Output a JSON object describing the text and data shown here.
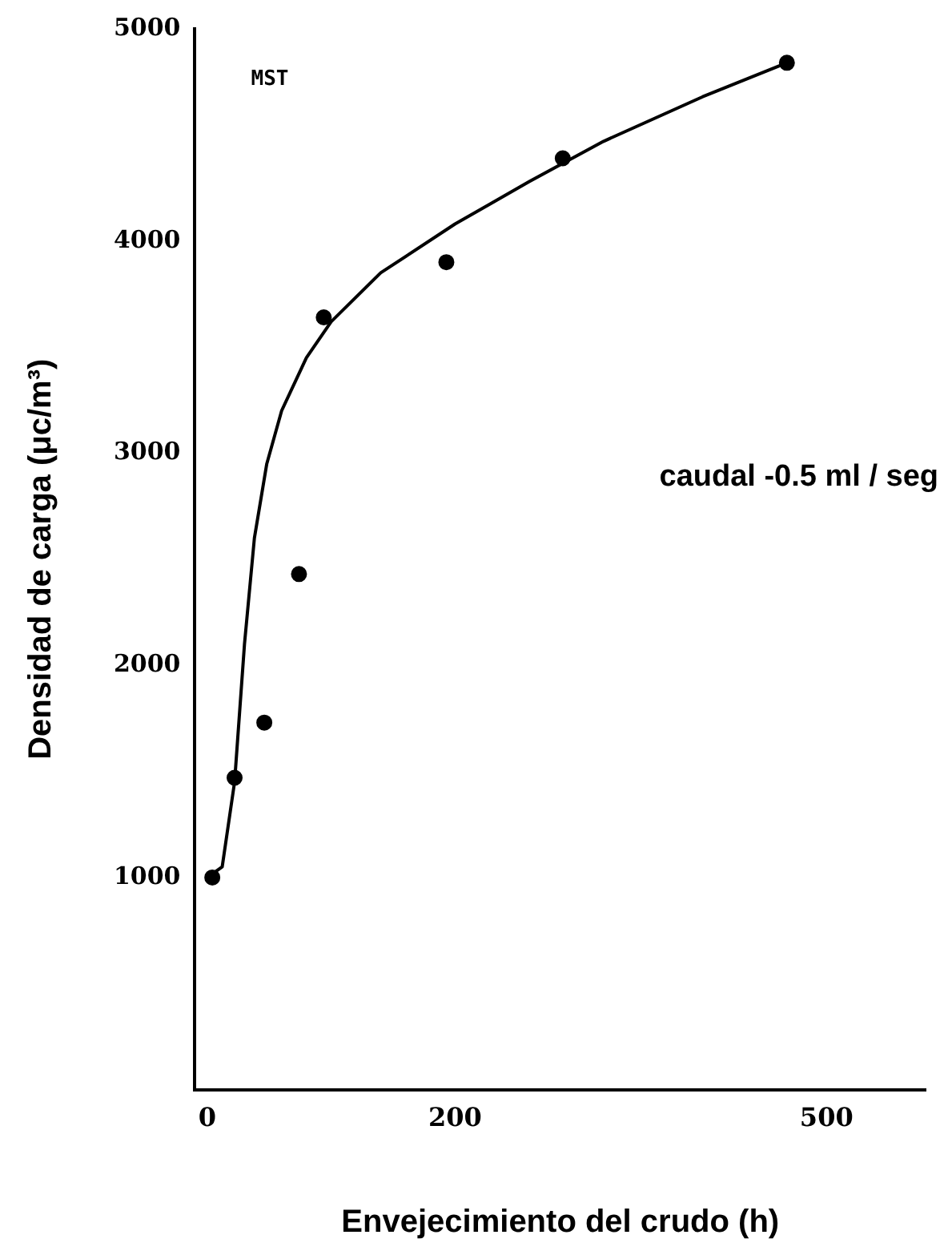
{
  "chart_data": {
    "type": "scatter",
    "xlabel": "Envejecimiento del crudo (h)",
    "ylabel": "Densidad de carga (μc/m³)",
    "annotations": [
      "MST",
      "caudal -0.5 ml / seg"
    ],
    "xlim": [
      -10,
      580
    ],
    "xticks": [
      0,
      200,
      500
    ],
    "ylim": [
      0,
      5000
    ],
    "yticks": [
      1000,
      2000,
      3000,
      4000,
      5000
    ],
    "grid": false,
    "legend": false,
    "series": [
      {
        "type": "scatter",
        "color": "#000000",
        "marker": "circle",
        "x": [
          4,
          22,
          46,
          74,
          94,
          193,
          287,
          468
        ],
        "values": [
          1000,
          1470,
          1730,
          2430,
          3640,
          3900,
          4390,
          4840
        ]
      },
      {
        "type": "line",
        "color": "#000000",
        "marker": "none",
        "line_style": "solid",
        "x": [
          0,
          12,
          22,
          30,
          38,
          48,
          60,
          80,
          100,
          140,
          200,
          260,
          320,
          400,
          468
        ],
        "values": [
          1000,
          1050,
          1450,
          2100,
          2600,
          2950,
          3200,
          3450,
          3620,
          3850,
          4080,
          4280,
          4470,
          4680,
          4840
        ]
      }
    ]
  }
}
